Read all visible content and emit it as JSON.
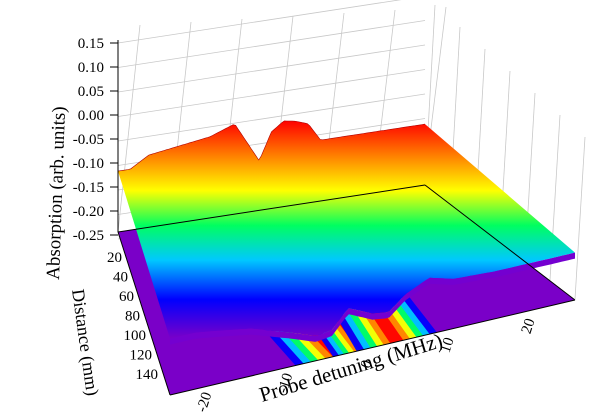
{
  "chart_data": {
    "type": "surface3d",
    "zlabel": "Absorption (arb. units)",
    "ylabel": "Distance (mm)",
    "xlabel": "Probe detuning (MHz)",
    "zlim": [
      -0.25,
      0.15
    ],
    "z_ticks": [
      "0.15",
      "0.10",
      "0.05",
      "0.00",
      "-0.05",
      "-0.10",
      "-0.15",
      "-0.20",
      "-0.25"
    ],
    "y_ticks": [
      "20",
      "40",
      "60",
      "80",
      "100",
      "120",
      "140"
    ],
    "x_ticks": [
      "-20",
      "-10",
      "0",
      "10",
      "20"
    ],
    "colormap": [
      "#7a00c8",
      "#0000ff",
      "#00c8ff",
      "#00ff60",
      "#ffff00",
      "#ff8000",
      "#ff0000"
    ],
    "grid": true,
    "front_profile": {
      "distance_mm": 140,
      "x": [
        -25,
        -22,
        -20,
        -15,
        -10,
        -7,
        -5,
        -3,
        0,
        2,
        4,
        7,
        10,
        15,
        20,
        25
      ],
      "z": [
        0.0,
        0.0,
        -0.01,
        -0.04,
        -0.1,
        -0.14,
        -0.13,
        -0.05,
        -0.1,
        -0.11,
        -0.05,
        0.0,
        -0.03,
        -0.04,
        -0.04,
        -0.04
      ]
    },
    "back_profile": {
      "distance_mm": 20,
      "x": [
        -25,
        -23,
        -20,
        -15,
        -10,
        -8,
        -6,
        -4,
        -2,
        0,
        2,
        4,
        6,
        8,
        10,
        15,
        20,
        25
      ],
      "z": [
        0.02,
        0.02,
        0.07,
        0.09,
        0.11,
        0.13,
        0.15,
        0.06,
        -0.03,
        0.09,
        0.13,
        0.12,
        0.1,
        0.02,
        0.02,
        0.02,
        0.02,
        0.02
      ]
    },
    "projection_peaks": {
      "distance_mm": [
        20,
        140
      ],
      "left_x": [
        -14,
        -4
      ],
      "mid_x": [
        -3,
        -1
      ],
      "right_x": [
        6,
        3
      ]
    }
  }
}
